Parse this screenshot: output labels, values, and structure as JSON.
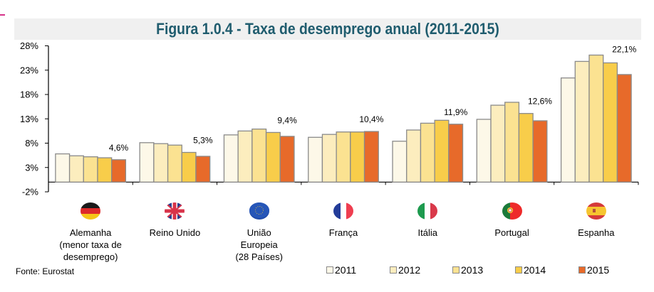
{
  "title": "Figura 1.0.4 - Taxa de desemprego anual (2011-2015)",
  "source": "Fonte: Eurostat",
  "colors": {
    "title": "#1f5c6e",
    "bar_border": "#8a8a8a",
    "series": [
      "#fdf8e8",
      "#fcedbe",
      "#fbe291",
      "#f8cd4a",
      "#e76a2a"
    ]
  },
  "chart_data": {
    "type": "bar",
    "title": "Figura 1.0.4 - Taxa de desemprego anual (2011-2015)",
    "xlabel": "",
    "ylabel": "",
    "unit": "%",
    "ylim": [
      -2,
      28
    ],
    "yticks": [
      -2,
      3,
      8,
      13,
      18,
      23,
      28
    ],
    "ytick_labels": [
      "-2%",
      "3%",
      "8%",
      "13%",
      "18%",
      "23%",
      "28%"
    ],
    "grid": false,
    "legend_position": "bottom-right",
    "categories": [
      {
        "label_lines": [
          "Alemanha",
          "(menor taxa de",
          "desemprego)"
        ],
        "flag": "germany-flag-icon"
      },
      {
        "label_lines": [
          "Reino Unido"
        ],
        "flag": "uk-flag-icon"
      },
      {
        "label_lines": [
          "União",
          "Europeia",
          "(28 Países)"
        ],
        "flag": "eu-flag-icon"
      },
      {
        "label_lines": [
          "França"
        ],
        "flag": "france-flag-icon"
      },
      {
        "label_lines": [
          "Itália"
        ],
        "flag": "italy-flag-icon"
      },
      {
        "label_lines": [
          "Portugal"
        ],
        "flag": "portugal-flag-icon"
      },
      {
        "label_lines": [
          "Espanha"
        ],
        "flag": "spain-flag-icon"
      }
    ],
    "series": [
      {
        "name": "2011",
        "values": [
          5.8,
          8.1,
          9.7,
          9.2,
          8.4,
          12.9,
          21.4
        ]
      },
      {
        "name": "2012",
        "values": [
          5.4,
          7.9,
          10.5,
          9.8,
          10.7,
          15.8,
          24.8
        ]
      },
      {
        "name": "2013",
        "values": [
          5.2,
          7.6,
          10.9,
          10.3,
          12.1,
          16.4,
          26.1
        ]
      },
      {
        "name": "2014",
        "values": [
          5.0,
          6.1,
          10.2,
          10.3,
          12.7,
          14.1,
          24.5
        ]
      },
      {
        "name": "2015",
        "values": [
          4.6,
          5.3,
          9.4,
          10.4,
          11.9,
          12.6,
          22.1
        ]
      }
    ],
    "data_labels": [
      "4,6%",
      "5,3%",
      "9,4%",
      "10,4%",
      "11,9%",
      "12,6%",
      "22,1%"
    ],
    "data_label_series": "2015"
  }
}
